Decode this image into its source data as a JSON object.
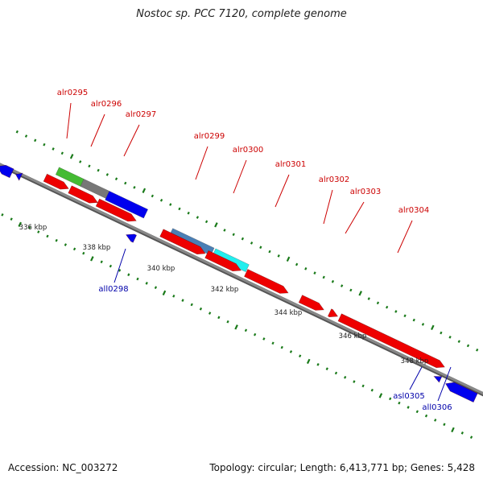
{
  "title": "Nostoc sp. PCC 7120, complete genome",
  "footer": {
    "accession": "Accession: NC_003272",
    "summary": "Topology: circular; Length: 6,413,771 bp; Genes: 5,428"
  },
  "colors": {
    "forward_label": "#cc0000",
    "reverse_label": "#0000aa",
    "backbone": "#888888",
    "tick": "#1a7a1a",
    "gene_red": "#ee0000",
    "gene_blue": "#0000ee",
    "gene_green": "#44bb33",
    "gene_gray": "#777777",
    "gene_steelblue": "#4a7fb5",
    "gene_cyan": "#22eeee"
  },
  "scale_labels": [
    "336 kbp",
    "338 kbp",
    "340 kbp",
    "342 kbp",
    "344 kbp",
    "346 kbp",
    "348 kbp"
  ],
  "forward_genes": [
    {
      "label": "alr0295"
    },
    {
      "label": "alr0296"
    },
    {
      "label": "alr0297"
    },
    {
      "label": "alr0299"
    },
    {
      "label": "alr0300"
    },
    {
      "label": "alr0301"
    },
    {
      "label": "alr0302"
    },
    {
      "label": "alr0303"
    },
    {
      "label": "alr0304"
    }
  ],
  "reverse_genes": [
    {
      "label": "all0298"
    },
    {
      "label": "asl0305"
    },
    {
      "label": "all0306"
    }
  ]
}
